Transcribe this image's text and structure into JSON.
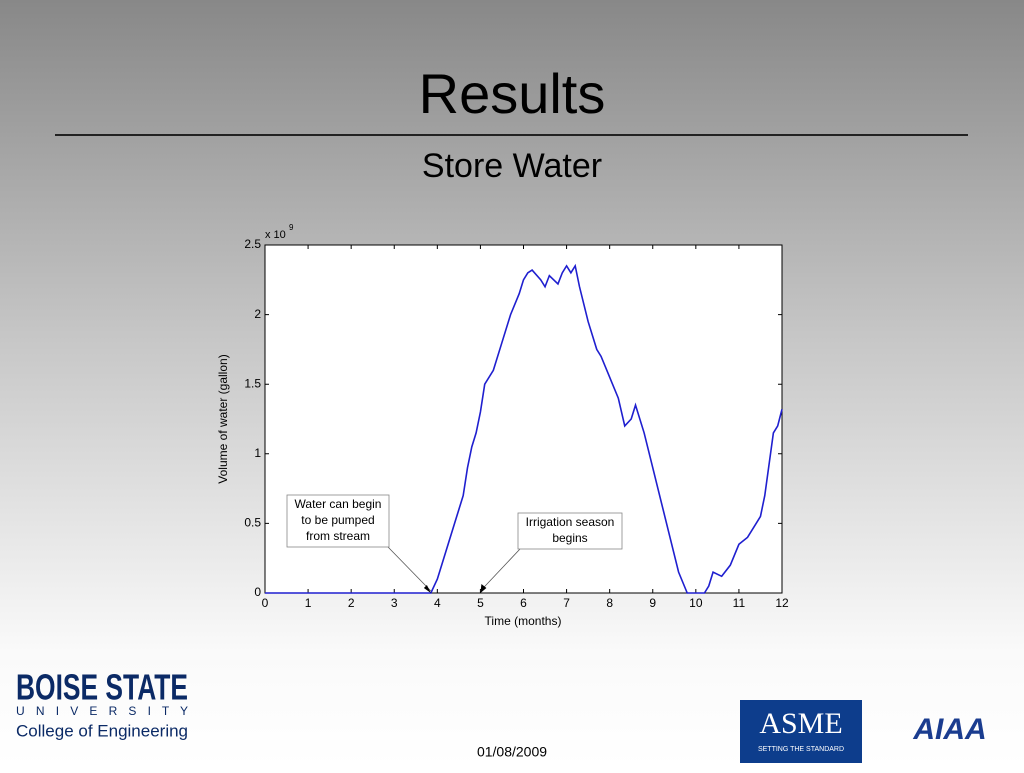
{
  "slide": {
    "title": "Results",
    "subtitle": "Store Water",
    "date": "01/08/2009",
    "logo_left": {
      "name": "BOISE STATE",
      "university": "U N I V E R S I T Y",
      "college": "College of Engineering"
    },
    "logo_asme": {
      "name": "ASME",
      "tagline": "SETTING THE STANDARD"
    },
    "logo_aiaa": {
      "name": "AIAA"
    }
  },
  "chart_data": {
    "type": "line",
    "x": [
      0,
      1,
      2,
      3,
      3.85,
      4.0,
      4.2,
      4.4,
      4.5,
      4.6,
      4.7,
      4.8,
      4.9,
      5.0,
      5.1,
      5.3,
      5.5,
      5.7,
      5.9,
      6.0,
      6.1,
      6.2,
      6.4,
      6.5,
      6.6,
      6.8,
      6.9,
      7.0,
      7.1,
      7.2,
      7.3,
      7.5,
      7.7,
      7.8,
      8.0,
      8.2,
      8.35,
      8.5,
      8.6,
      8.8,
      9.0,
      9.2,
      9.4,
      9.6,
      9.8,
      10.2,
      10.3,
      10.4,
      10.6,
      10.8,
      11.0,
      11.2,
      11.4,
      11.5,
      11.6,
      11.8,
      11.9,
      12.0
    ],
    "values": [
      0,
      0,
      0,
      0,
      0,
      0.1,
      0.3,
      0.5,
      0.6,
      0.7,
      0.9,
      1.05,
      1.15,
      1.3,
      1.5,
      1.6,
      1.8,
      2.0,
      2.15,
      2.25,
      2.3,
      2.32,
      2.25,
      2.2,
      2.28,
      2.22,
      2.3,
      2.35,
      2.3,
      2.35,
      2.2,
      1.95,
      1.75,
      1.7,
      1.55,
      1.4,
      1.2,
      1.25,
      1.35,
      1.15,
      0.9,
      0.65,
      0.4,
      0.15,
      0,
      0,
      0.05,
      0.15,
      0.12,
      0.2,
      0.35,
      0.4,
      0.5,
      0.55,
      0.7,
      1.15,
      1.2,
      1.32
    ],
    "color": "#1f1fcf",
    "xlim": [
      0,
      12
    ],
    "xticks": [
      0,
      1,
      2,
      3,
      4,
      5,
      6,
      7,
      8,
      9,
      10,
      11,
      12
    ],
    "ylim": [
      0,
      2.5
    ],
    "yticks": [
      0,
      0.5,
      1,
      1.5,
      2,
      2.5
    ],
    "y_multiplier": {
      "base": "x 10",
      "exponent": "9"
    },
    "xlabel": "Time (months)",
    "ylabel": "Volume of water (gallon)",
    "grid": false,
    "annotations": [
      {
        "text": [
          "Water can begin",
          "to be pumped",
          "from stream"
        ],
        "x": 3.85,
        "y": 0
      },
      {
        "text": [
          "Irrigation season",
          "begins"
        ],
        "x": 5,
        "y": 0
      }
    ]
  }
}
